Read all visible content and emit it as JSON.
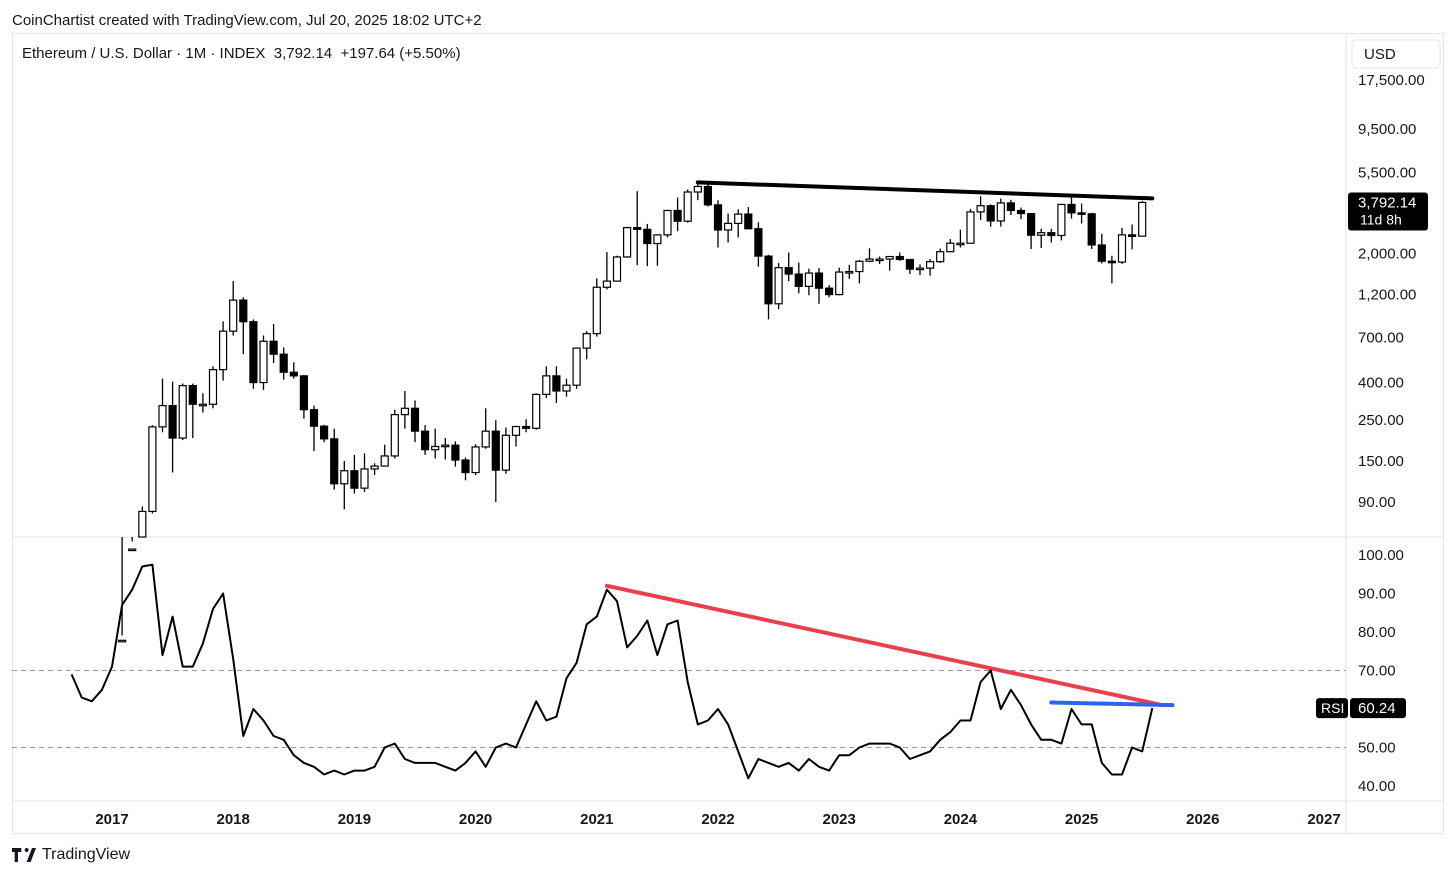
{
  "header": {
    "credit": "CoinChartist created with TradingView.com, Jul 20, 2025 18:02 UTC+2"
  },
  "legend": {
    "symbol": "Ethereum / U.S. Dollar · 1M · INDEX",
    "last": "3,792.14",
    "change": "+197.64 (+5.50%)"
  },
  "footer": {
    "brand": "TradingView"
  },
  "colors": {
    "candle_up_fill": "#ffffff",
    "candle_down_fill": "#000000",
    "candle_stroke": "#000000",
    "rsi_line": "#000000",
    "trend_price": "#000000",
    "trend_rsi_down": "#e8414e",
    "trend_rsi_flat": "#2e63f0",
    "grid_dash": "#9598a1"
  },
  "chart_data": [
    {
      "type": "candlestick",
      "title": "",
      "x_unit": "month",
      "scale": "log",
      "currency_label": "USD",
      "price_ticks": [
        {
          "value": 17500,
          "label": "17,500.00"
        },
        {
          "value": 9500,
          "label": "9,500.00"
        },
        {
          "value": 5500,
          "label": "5,500.00"
        },
        {
          "value": 2000,
          "label": "2,000.00"
        },
        {
          "value": 1200,
          "label": "1,200.00"
        },
        {
          "value": 700,
          "label": "700.00"
        },
        {
          "value": 400,
          "label": "400.00"
        },
        {
          "value": 250,
          "label": "250.00"
        },
        {
          "value": 150,
          "label": "150.00"
        },
        {
          "value": 90,
          "label": "90.00"
        }
      ],
      "last_price_label": "3,792.14",
      "countdown_label": "11d 8h",
      "x_ticks": [
        "2017",
        "2018",
        "2019",
        "2020",
        "2021",
        "2022",
        "2023",
        "2024",
        "2025",
        "2026",
        "2027"
      ],
      "candles": [
        {
          "t": "2017-02",
          "o": 11,
          "h": 17,
          "l": 10,
          "c": 16
        },
        {
          "t": "2017-03",
          "o": 16,
          "h": 55,
          "l": 15,
          "c": 50
        },
        {
          "t": "2017-04",
          "o": 50,
          "h": 85,
          "l": 43,
          "c": 80
        },
        {
          "t": "2017-05",
          "o": 80,
          "h": 235,
          "l": 78,
          "c": 230
        },
        {
          "t": "2017-06",
          "o": 230,
          "h": 420,
          "l": 215,
          "c": 300
        },
        {
          "t": "2017-07",
          "o": 300,
          "h": 405,
          "l": 130,
          "c": 200
        },
        {
          "t": "2017-08",
          "o": 200,
          "h": 395,
          "l": 195,
          "c": 385
        },
        {
          "t": "2017-09",
          "o": 385,
          "h": 395,
          "l": 200,
          "c": 305
        },
        {
          "t": "2017-10",
          "o": 305,
          "h": 350,
          "l": 275,
          "c": 305
        },
        {
          "t": "2017-11",
          "o": 305,
          "h": 490,
          "l": 290,
          "c": 470
        },
        {
          "t": "2017-12",
          "o": 470,
          "h": 860,
          "l": 410,
          "c": 760
        },
        {
          "t": "2018-01",
          "o": 760,
          "h": 1420,
          "l": 720,
          "c": 1120
        },
        {
          "t": "2018-02",
          "o": 1120,
          "h": 1160,
          "l": 570,
          "c": 855
        },
        {
          "t": "2018-03",
          "o": 855,
          "h": 880,
          "l": 370,
          "c": 400
        },
        {
          "t": "2018-04",
          "o": 400,
          "h": 720,
          "l": 365,
          "c": 670
        },
        {
          "t": "2018-05",
          "o": 670,
          "h": 830,
          "l": 510,
          "c": 570
        },
        {
          "t": "2018-06",
          "o": 570,
          "h": 620,
          "l": 415,
          "c": 455
        },
        {
          "t": "2018-07",
          "o": 455,
          "h": 515,
          "l": 420,
          "c": 435
        },
        {
          "t": "2018-08",
          "o": 435,
          "h": 440,
          "l": 255,
          "c": 285
        },
        {
          "t": "2018-09",
          "o": 285,
          "h": 300,
          "l": 170,
          "c": 232
        },
        {
          "t": "2018-10",
          "o": 232,
          "h": 236,
          "l": 190,
          "c": 198
        },
        {
          "t": "2018-11",
          "o": 198,
          "h": 225,
          "l": 105,
          "c": 113
        },
        {
          "t": "2018-12",
          "o": 113,
          "h": 150,
          "l": 82,
          "c": 133
        },
        {
          "t": "2019-01",
          "o": 133,
          "h": 162,
          "l": 100,
          "c": 107
        },
        {
          "t": "2019-02",
          "o": 107,
          "h": 165,
          "l": 102,
          "c": 136
        },
        {
          "t": "2019-03",
          "o": 136,
          "h": 146,
          "l": 126,
          "c": 141
        },
        {
          "t": "2019-04",
          "o": 141,
          "h": 184,
          "l": 153,
          "c": 160
        },
        {
          "t": "2019-05",
          "o": 160,
          "h": 285,
          "l": 155,
          "c": 268
        },
        {
          "t": "2019-06",
          "o": 268,
          "h": 360,
          "l": 225,
          "c": 290
        },
        {
          "t": "2019-07",
          "o": 290,
          "h": 320,
          "l": 190,
          "c": 218
        },
        {
          "t": "2019-08",
          "o": 218,
          "h": 235,
          "l": 162,
          "c": 173
        },
        {
          "t": "2019-09",
          "o": 173,
          "h": 225,
          "l": 155,
          "c": 180
        },
        {
          "t": "2019-10",
          "o": 180,
          "h": 200,
          "l": 153,
          "c": 183
        },
        {
          "t": "2019-11",
          "o": 183,
          "h": 192,
          "l": 140,
          "c": 152
        },
        {
          "t": "2019-12",
          "o": 152,
          "h": 157,
          "l": 118,
          "c": 130
        },
        {
          "t": "2020-01",
          "o": 130,
          "h": 185,
          "l": 126,
          "c": 179
        },
        {
          "t": "2020-02",
          "o": 179,
          "h": 290,
          "l": 175,
          "c": 218
        },
        {
          "t": "2020-03",
          "o": 218,
          "h": 250,
          "l": 90,
          "c": 134
        },
        {
          "t": "2020-04",
          "o": 134,
          "h": 228,
          "l": 128,
          "c": 207
        },
        {
          "t": "2020-05",
          "o": 207,
          "h": 220,
          "l": 180,
          "c": 231
        },
        {
          "t": "2020-06",
          "o": 231,
          "h": 253,
          "l": 215,
          "c": 226
        },
        {
          "t": "2020-07",
          "o": 226,
          "h": 350,
          "l": 222,
          "c": 345
        },
        {
          "t": "2020-08",
          "o": 345,
          "h": 490,
          "l": 330,
          "c": 435
        },
        {
          "t": "2020-09",
          "o": 435,
          "h": 490,
          "l": 310,
          "c": 360
        },
        {
          "t": "2020-10",
          "o": 360,
          "h": 420,
          "l": 335,
          "c": 387
        },
        {
          "t": "2020-11",
          "o": 387,
          "h": 620,
          "l": 370,
          "c": 615
        },
        {
          "t": "2020-12",
          "o": 615,
          "h": 760,
          "l": 535,
          "c": 737
        },
        {
          "t": "2021-01",
          "o": 737,
          "h": 1470,
          "l": 710,
          "c": 1315
        },
        {
          "t": "2021-02",
          "o": 1315,
          "h": 2040,
          "l": 1280,
          "c": 1420
        },
        {
          "t": "2021-03",
          "o": 1420,
          "h": 1950,
          "l": 1410,
          "c": 1920
        },
        {
          "t": "2021-04",
          "o": 1920,
          "h": 2800,
          "l": 1900,
          "c": 2770
        },
        {
          "t": "2021-05",
          "o": 2770,
          "h": 4370,
          "l": 1730,
          "c": 2710
        },
        {
          "t": "2021-06",
          "o": 2710,
          "h": 2900,
          "l": 1710,
          "c": 2270
        },
        {
          "t": "2021-07",
          "o": 2270,
          "h": 2550,
          "l": 1720,
          "c": 2530
        },
        {
          "t": "2021-08",
          "o": 2530,
          "h": 3460,
          "l": 2450,
          "c": 3430
        },
        {
          "t": "2021-09",
          "o": 3430,
          "h": 4030,
          "l": 2650,
          "c": 3000
        },
        {
          "t": "2021-10",
          "o": 3000,
          "h": 4460,
          "l": 2950,
          "c": 4320
        },
        {
          "t": "2021-11",
          "o": 4320,
          "h": 4870,
          "l": 3900,
          "c": 4630
        },
        {
          "t": "2021-12",
          "o": 4630,
          "h": 4780,
          "l": 3600,
          "c": 3680
        },
        {
          "t": "2022-01",
          "o": 3680,
          "h": 3900,
          "l": 2160,
          "c": 2690
        },
        {
          "t": "2022-02",
          "o": 2690,
          "h": 3300,
          "l": 2300,
          "c": 2920
        },
        {
          "t": "2022-03",
          "o": 2920,
          "h": 3480,
          "l": 2450,
          "c": 3280
        },
        {
          "t": "2022-04",
          "o": 3280,
          "h": 3580,
          "l": 2720,
          "c": 2730
        },
        {
          "t": "2022-05",
          "o": 2730,
          "h": 2960,
          "l": 1700,
          "c": 1940
        },
        {
          "t": "2022-06",
          "o": 1940,
          "h": 1970,
          "l": 880,
          "c": 1070
        },
        {
          "t": "2022-07",
          "o": 1070,
          "h": 1780,
          "l": 1000,
          "c": 1680
        },
        {
          "t": "2022-08",
          "o": 1680,
          "h": 2030,
          "l": 1420,
          "c": 1550
        },
        {
          "t": "2022-09",
          "o": 1550,
          "h": 1790,
          "l": 1220,
          "c": 1330
        },
        {
          "t": "2022-10",
          "o": 1330,
          "h": 1660,
          "l": 1190,
          "c": 1570
        },
        {
          "t": "2022-11",
          "o": 1570,
          "h": 1670,
          "l": 1070,
          "c": 1300
        },
        {
          "t": "2022-12",
          "o": 1300,
          "h": 1350,
          "l": 1160,
          "c": 1200
        },
        {
          "t": "2023-01",
          "o": 1200,
          "h": 1680,
          "l": 1190,
          "c": 1590
        },
        {
          "t": "2023-02",
          "o": 1590,
          "h": 1740,
          "l": 1460,
          "c": 1600
        },
        {
          "t": "2023-03",
          "o": 1600,
          "h": 1850,
          "l": 1380,
          "c": 1820
        },
        {
          "t": "2023-04",
          "o": 1820,
          "h": 2140,
          "l": 1800,
          "c": 1870
        },
        {
          "t": "2023-05",
          "o": 1870,
          "h": 1930,
          "l": 1760,
          "c": 1870
        },
        {
          "t": "2023-06",
          "o": 1870,
          "h": 1930,
          "l": 1620,
          "c": 1930
        },
        {
          "t": "2023-07",
          "o": 1930,
          "h": 2030,
          "l": 1830,
          "c": 1860
        },
        {
          "t": "2023-08",
          "o": 1860,
          "h": 1870,
          "l": 1550,
          "c": 1650
        },
        {
          "t": "2023-09",
          "o": 1650,
          "h": 1750,
          "l": 1530,
          "c": 1670
        },
        {
          "t": "2023-10",
          "o": 1670,
          "h": 1870,
          "l": 1520,
          "c": 1810
        },
        {
          "t": "2023-11",
          "o": 1810,
          "h": 2130,
          "l": 1780,
          "c": 2050
        },
        {
          "t": "2023-12",
          "o": 2050,
          "h": 2400,
          "l": 2040,
          "c": 2280
        },
        {
          "t": "2024-01",
          "o": 2280,
          "h": 2700,
          "l": 2160,
          "c": 2280
        },
        {
          "t": "2024-02",
          "o": 2280,
          "h": 3500,
          "l": 2270,
          "c": 3370
        },
        {
          "t": "2024-03",
          "o": 3370,
          "h": 4100,
          "l": 3050,
          "c": 3640
        },
        {
          "t": "2024-04",
          "o": 3640,
          "h": 3700,
          "l": 2800,
          "c": 3010
        },
        {
          "t": "2024-05",
          "o": 3010,
          "h": 3980,
          "l": 2810,
          "c": 3770
        },
        {
          "t": "2024-06",
          "o": 3770,
          "h": 3920,
          "l": 3240,
          "c": 3430
        },
        {
          "t": "2024-07",
          "o": 3430,
          "h": 3560,
          "l": 3080,
          "c": 3300
        },
        {
          "t": "2024-08",
          "o": 3300,
          "h": 3310,
          "l": 2120,
          "c": 2520
        },
        {
          "t": "2024-09",
          "o": 2520,
          "h": 2730,
          "l": 2150,
          "c": 2600
        },
        {
          "t": "2024-10",
          "o": 2600,
          "h": 2730,
          "l": 2300,
          "c": 2510
        },
        {
          "t": "2024-11",
          "o": 2510,
          "h": 3700,
          "l": 2360,
          "c": 3700
        },
        {
          "t": "2024-12",
          "o": 3700,
          "h": 4110,
          "l": 3100,
          "c": 3330
        },
        {
          "t": "2025-01",
          "o": 3330,
          "h": 3740,
          "l": 2920,
          "c": 3290
        },
        {
          "t": "2025-02",
          "o": 3290,
          "h": 3330,
          "l": 2120,
          "c": 2230
        },
        {
          "t": "2025-03",
          "o": 2230,
          "h": 2560,
          "l": 1770,
          "c": 1820
        },
        {
          "t": "2025-04",
          "o": 1820,
          "h": 1950,
          "l": 1380,
          "c": 1800
        },
        {
          "t": "2025-05",
          "o": 1800,
          "h": 2760,
          "l": 1760,
          "c": 2530
        },
        {
          "t": "2025-06",
          "o": 2530,
          "h": 2880,
          "l": 2110,
          "c": 2490
        },
        {
          "t": "2025-07",
          "o": 2490,
          "h": 3860,
          "l": 2500,
          "c": 3792.14
        }
      ],
      "trendline": {
        "from": {
          "t": "2021-11",
          "value": 4870
        },
        "to": {
          "t": "2025-08",
          "value": 3990
        }
      }
    },
    {
      "type": "line",
      "title": "",
      "series_label": "RSI",
      "last_value_label": "60.24",
      "ylim": [
        37,
        102
      ],
      "y_ticks": [
        {
          "value": 100,
          "label": "100.00"
        },
        {
          "value": 90,
          "label": "90.00"
        },
        {
          "value": 80,
          "label": "80.00"
        },
        {
          "value": 70,
          "label": "70.00"
        },
        {
          "value": 50,
          "label": "50.00"
        },
        {
          "value": 40,
          "label": "40.00"
        }
      ],
      "reference_lines": [
        70,
        50
      ],
      "x_start": "2016-09",
      "values": [
        69,
        63,
        62,
        65,
        71,
        87,
        91,
        97,
        97.5,
        74,
        84,
        71,
        71,
        77,
        86,
        90,
        73,
        53,
        60,
        57,
        53,
        52,
        48,
        46,
        45,
        43,
        44,
        43,
        44,
        44,
        45,
        50,
        51,
        47,
        46,
        46,
        46,
        45,
        44,
        46,
        49,
        45,
        50,
        51,
        50,
        56,
        62,
        57,
        58,
        68,
        72,
        82,
        84,
        91,
        88,
        76,
        79,
        83,
        74,
        82,
        83,
        67,
        56,
        57,
        60,
        56,
        49,
        42,
        47,
        46,
        45,
        46,
        44,
        47,
        45,
        44,
        48,
        48,
        50,
        51,
        51,
        51,
        50,
        47,
        48,
        49,
        52,
        54,
        57,
        57,
        67,
        70,
        60,
        65,
        61,
        56,
        52,
        52,
        51,
        60,
        56,
        56,
        46,
        43,
        43,
        50,
        49,
        60.24
      ],
      "trendlines": [
        {
          "name": "down",
          "from": {
            "t": "2021-02",
            "value": 92
          },
          "to": {
            "t": "2025-09",
            "value": 61
          }
        },
        {
          "name": "flat",
          "from": {
            "t": "2024-10",
            "value": 61.7
          },
          "to": {
            "t": "2025-10",
            "value": 61
          }
        }
      ]
    }
  ]
}
